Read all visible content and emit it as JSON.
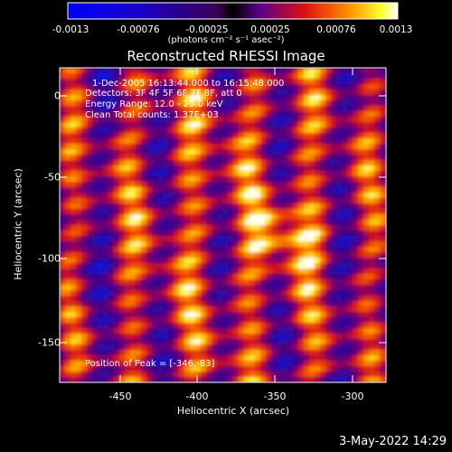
{
  "title": "Reconstructed RHESSI Image",
  "colorbar": {
    "ticks": [
      "-0.0013",
      "-0.00076",
      "-0.00025",
      "0.00025",
      "0.00076",
      "0.0013"
    ],
    "unit_label": "(photons cm⁻² s⁻¹ asec⁻²)",
    "range": [
      -0.0013,
      0.0013
    ]
  },
  "annotations": {
    "time": "1-Dec-2005 16:13:44.000 to 16:15:48.000",
    "detectors": "Detectors: 3F 4F 5F 6F 7F 8F, att 0",
    "energy": "Energy Range: 12.0 - 25.0 keV",
    "clean": "Clean    Total counts: 1.37E+03",
    "peak": "Position of Peak = [-346,-83]"
  },
  "axes": {
    "xlabel": "Heliocentric X (arcsec)",
    "ylabel": "Heliocentric Y (arcsec)",
    "x_ticks": [
      "-450",
      "-400",
      "-350",
      "-300"
    ],
    "y_ticks": [
      "0",
      "-50",
      "-100",
      "-150"
    ],
    "xlim": [
      -478,
      -290
    ],
    "ylim": [
      -175,
      18
    ]
  },
  "timestamp": "3-May-2022 14:29",
  "colors": {
    "background": "#000000",
    "text": "#ffffff"
  }
}
